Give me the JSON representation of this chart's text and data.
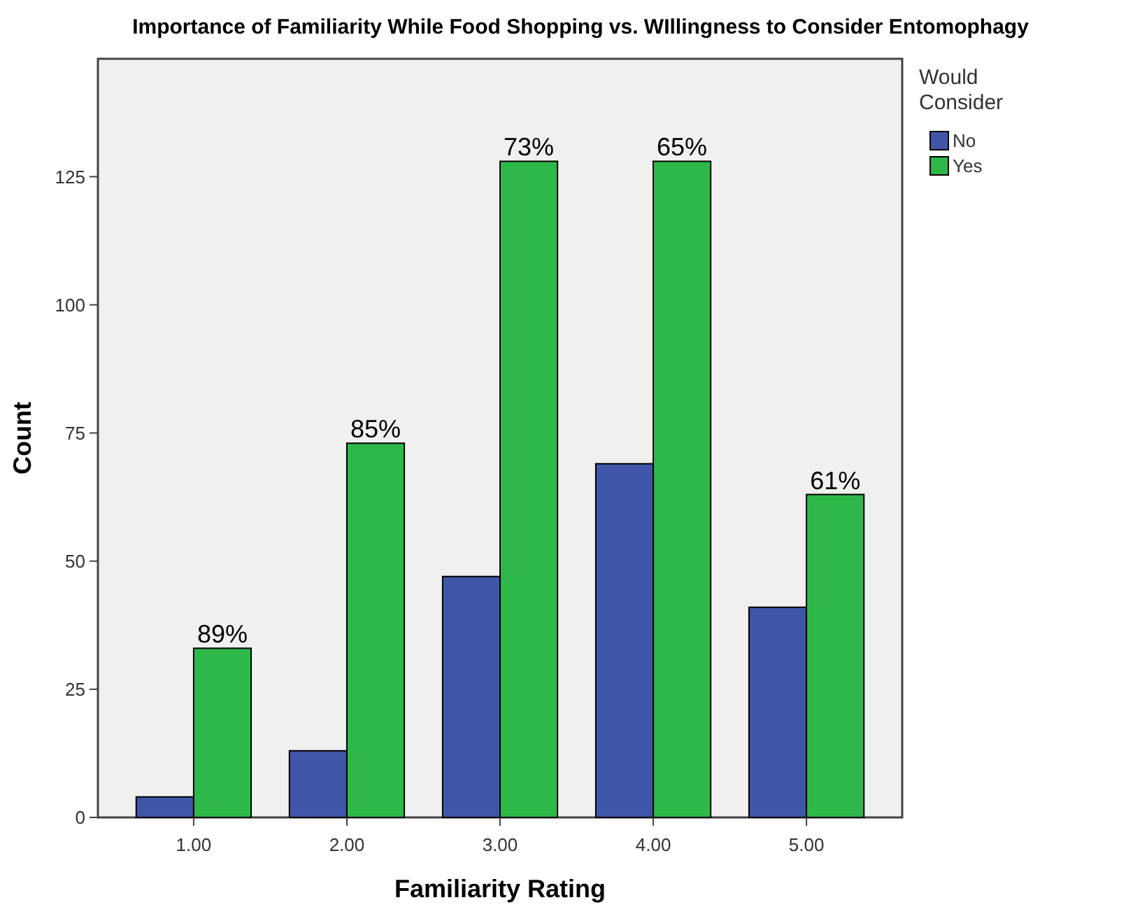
{
  "chart_data": {
    "type": "bar",
    "title": "Importance of Familiarity While Food Shopping vs. WIllingness to Consider Entomophagy",
    "xlabel": "Familiarity Rating",
    "ylabel": "Count",
    "legend_title": "Would Consider",
    "categories": [
      "1.00",
      "2.00",
      "3.00",
      "4.00",
      "5.00"
    ],
    "series": [
      {
        "name": "No",
        "color": "#3f56a8",
        "values": [
          4,
          13,
          47,
          69,
          41
        ]
      },
      {
        "name": "Yes",
        "color": "#2eb84a",
        "values": [
          33,
          73,
          128,
          128,
          63
        ]
      }
    ],
    "annotations": [
      {
        "text": "89%",
        "x": "1.00",
        "y": 33
      },
      {
        "text": "85%",
        "x": "2.00",
        "y": 73
      },
      {
        "text": "73%",
        "x": "3.00",
        "y": 128
      },
      {
        "text": "65%",
        "x": "4.00",
        "y": 128
      },
      {
        "text": "61%",
        "x": "5.00",
        "y": 63
      }
    ],
    "ylim": [
      0,
      148
    ],
    "yticks": [
      0,
      25,
      50,
      75,
      100,
      125
    ],
    "grid": false,
    "legend": "top right"
  }
}
